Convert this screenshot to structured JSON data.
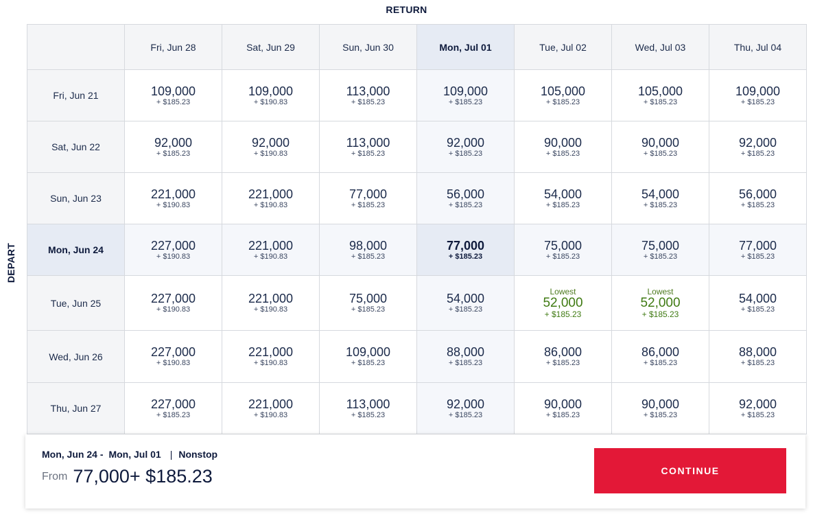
{
  "return_label": "RETURN",
  "depart_label": "DEPART",
  "return_dates": [
    "Fri, Jun 28",
    "Sat, Jun 29",
    "Sun, Jun 30",
    "Mon, Jul 01",
    "Tue, Jul 02",
    "Wed, Jul 03",
    "Thu, Jul 04"
  ],
  "selected_return_index": 3,
  "selected_depart_index": 3,
  "rows": [
    {
      "depart": "Fri, Jun 21",
      "cells": [
        {
          "miles": "109,000",
          "fee": "+ $185.23"
        },
        {
          "miles": "109,000",
          "fee": "+ $190.83"
        },
        {
          "miles": "113,000",
          "fee": "+ $185.23"
        },
        {
          "miles": "109,000",
          "fee": "+ $185.23"
        },
        {
          "miles": "105,000",
          "fee": "+ $185.23"
        },
        {
          "miles": "105,000",
          "fee": "+ $185.23"
        },
        {
          "miles": "109,000",
          "fee": "+ $185.23"
        }
      ]
    },
    {
      "depart": "Sat, Jun 22",
      "cells": [
        {
          "miles": "92,000",
          "fee": "+ $185.23"
        },
        {
          "miles": "92,000",
          "fee": "+ $190.83"
        },
        {
          "miles": "113,000",
          "fee": "+ $185.23"
        },
        {
          "miles": "92,000",
          "fee": "+ $185.23"
        },
        {
          "miles": "90,000",
          "fee": "+ $185.23"
        },
        {
          "miles": "90,000",
          "fee": "+ $185.23"
        },
        {
          "miles": "92,000",
          "fee": "+ $185.23"
        }
      ]
    },
    {
      "depart": "Sun, Jun 23",
      "cells": [
        {
          "miles": "221,000",
          "fee": "+ $190.83"
        },
        {
          "miles": "221,000",
          "fee": "+ $190.83"
        },
        {
          "miles": "77,000",
          "fee": "+ $185.23"
        },
        {
          "miles": "56,000",
          "fee": "+ $185.23"
        },
        {
          "miles": "54,000",
          "fee": "+ $185.23"
        },
        {
          "miles": "54,000",
          "fee": "+ $185.23"
        },
        {
          "miles": "56,000",
          "fee": "+ $185.23"
        }
      ]
    },
    {
      "depart": "Mon, Jun 24",
      "cells": [
        {
          "miles": "227,000",
          "fee": "+ $190.83"
        },
        {
          "miles": "221,000",
          "fee": "+ $190.83"
        },
        {
          "miles": "98,000",
          "fee": "+ $185.23"
        },
        {
          "miles": "77,000",
          "fee": "+ $185.23"
        },
        {
          "miles": "75,000",
          "fee": "+ $185.23"
        },
        {
          "miles": "75,000",
          "fee": "+ $185.23"
        },
        {
          "miles": "77,000",
          "fee": "+ $185.23"
        }
      ]
    },
    {
      "depart": "Tue, Jun 25",
      "cells": [
        {
          "miles": "227,000",
          "fee": "+ $190.83"
        },
        {
          "miles": "221,000",
          "fee": "+ $190.83"
        },
        {
          "miles": "75,000",
          "fee": "+ $185.23"
        },
        {
          "miles": "54,000",
          "fee": "+ $185.23"
        },
        {
          "tag": "Lowest",
          "miles": "52,000",
          "fee": "+ $185.23"
        },
        {
          "tag": "Lowest",
          "miles": "52,000",
          "fee": "+ $185.23"
        },
        {
          "miles": "54,000",
          "fee": "+ $185.23"
        }
      ]
    },
    {
      "depart": "Wed, Jun 26",
      "cells": [
        {
          "miles": "227,000",
          "fee": "+ $190.83"
        },
        {
          "miles": "221,000",
          "fee": "+ $190.83"
        },
        {
          "miles": "109,000",
          "fee": "+ $185.23"
        },
        {
          "miles": "88,000",
          "fee": "+ $185.23"
        },
        {
          "miles": "86,000",
          "fee": "+ $185.23"
        },
        {
          "miles": "86,000",
          "fee": "+ $185.23"
        },
        {
          "miles": "88,000",
          "fee": "+ $185.23"
        }
      ]
    },
    {
      "depart": "Thu, Jun 27",
      "cells": [
        {
          "miles": "227,000",
          "fee": "+ $185.23"
        },
        {
          "miles": "221,000",
          "fee": "+ $190.83"
        },
        {
          "miles": "113,000",
          "fee": "+ $185.23"
        },
        {
          "miles": "92,000",
          "fee": "+ $185.23"
        },
        {
          "miles": "90,000",
          "fee": "+ $185.23"
        },
        {
          "miles": "90,000",
          "fee": "+ $185.23"
        },
        {
          "miles": "92,000",
          "fee": "+ $185.23"
        }
      ]
    }
  ],
  "summary": {
    "depart_date": "Mon, Jun 24",
    "dash": "-",
    "return_date": "Mon, Jul 01",
    "separator": "|",
    "stops": "Nonstop",
    "from_label": "From",
    "price": "77,000+ $185.23",
    "continue_label": "CONTINUE"
  },
  "colors": {
    "accent_red": "#e31837",
    "navy": "#0e1a3c",
    "lowest_green": "#3f7a12",
    "selected_bg": "#e6ebf4"
  }
}
